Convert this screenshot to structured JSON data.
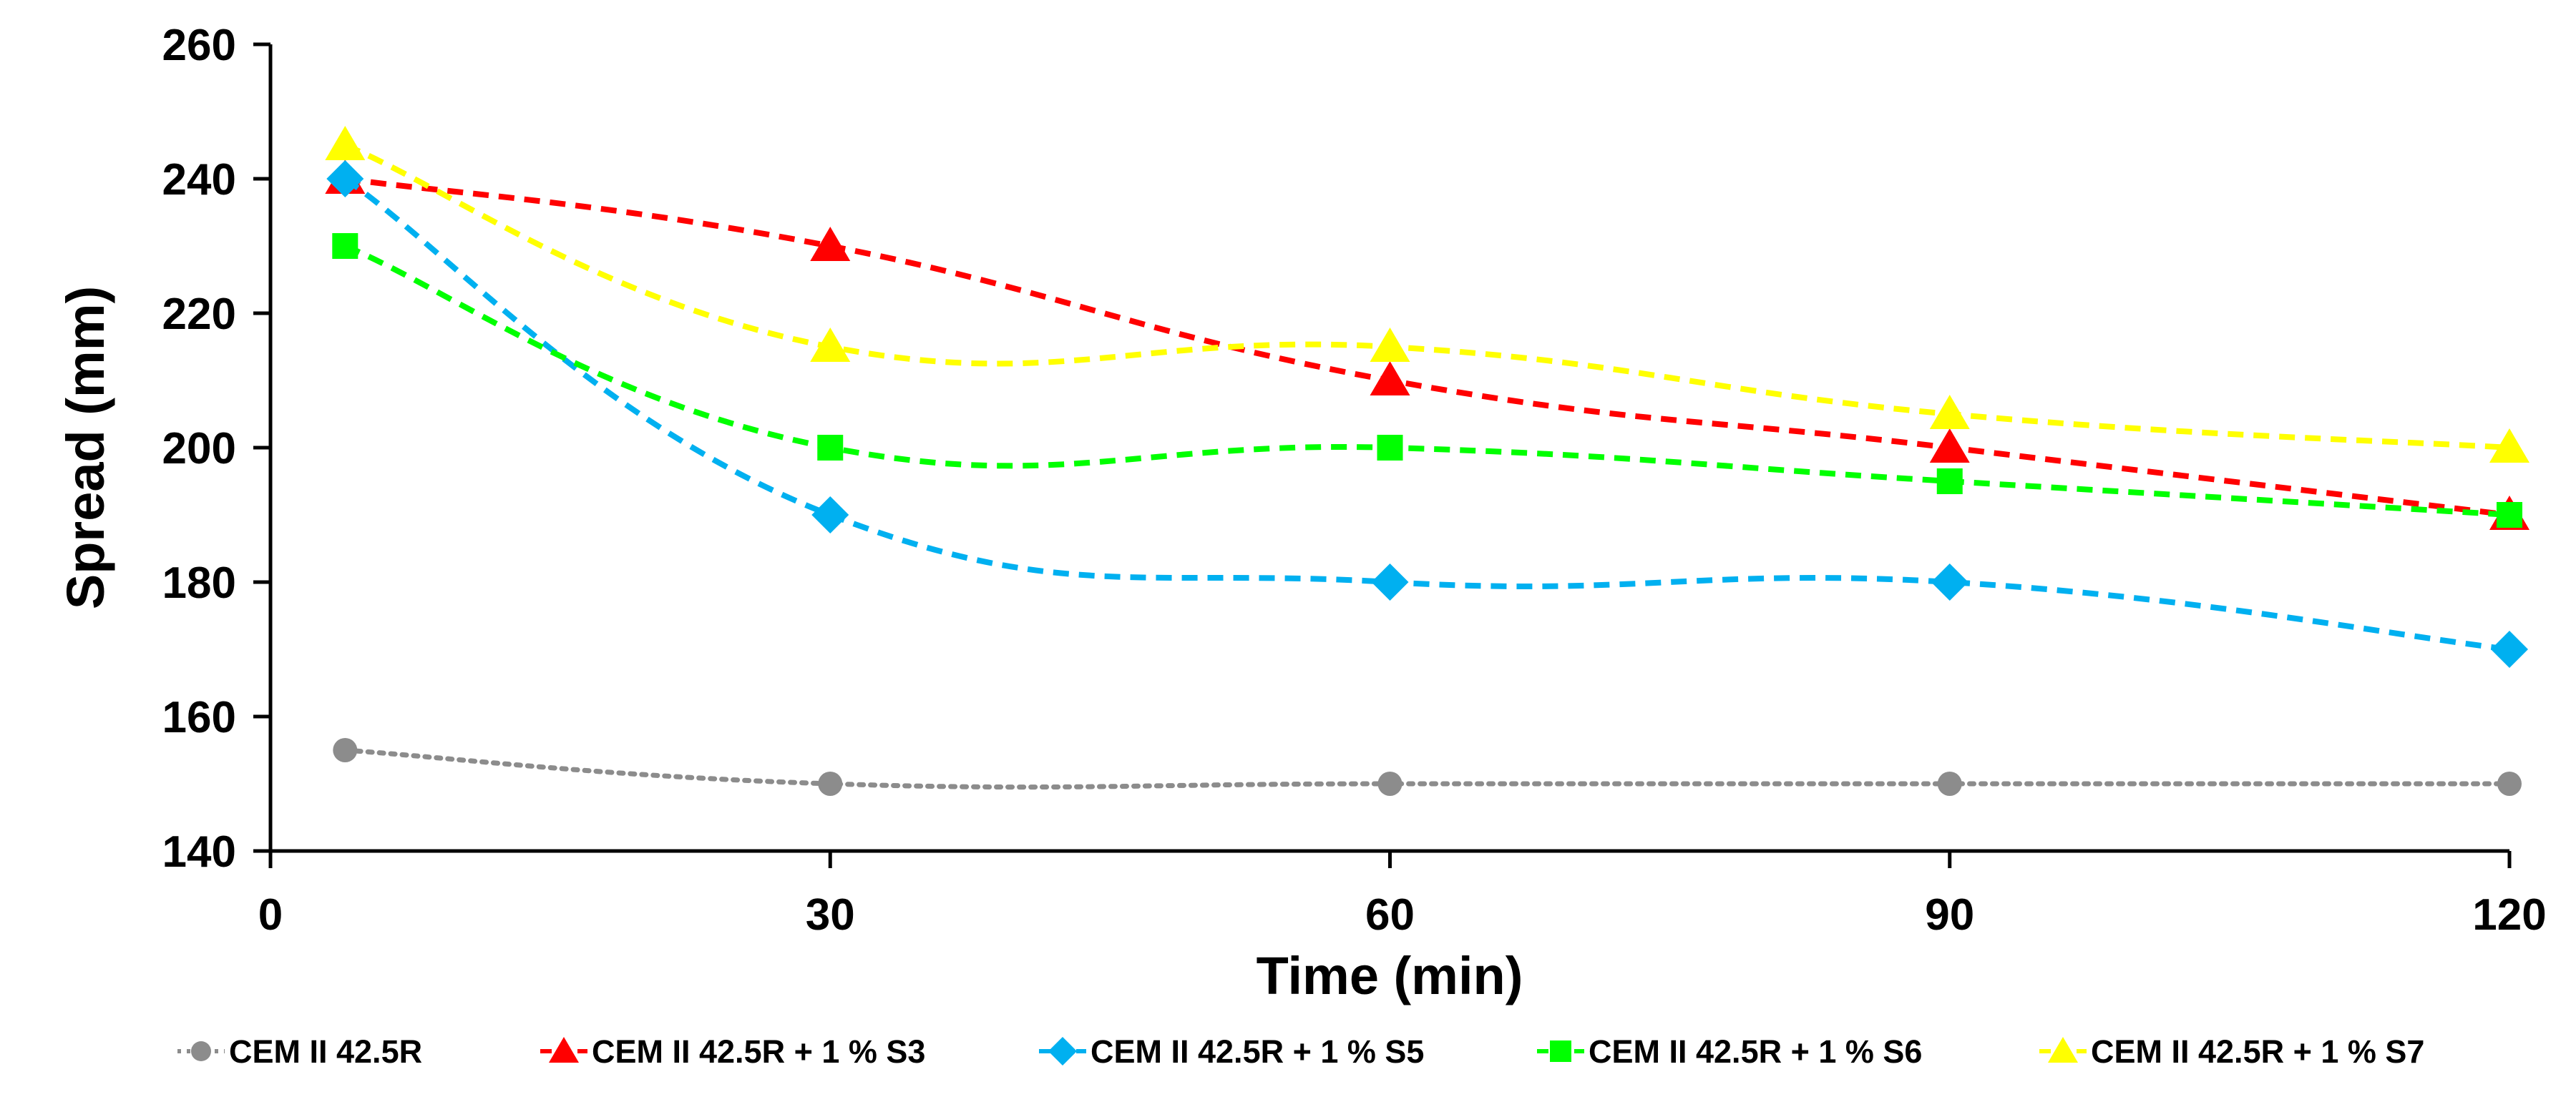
{
  "chart_data": {
    "type": "line",
    "xlabel": "Time (min)",
    "ylabel": "Spread (mm)",
    "xlim": [
      0,
      120
    ],
    "ylim": [
      140,
      260
    ],
    "x_ticks": [
      0,
      30,
      60,
      90,
      120
    ],
    "y_ticks": [
      140,
      160,
      180,
      200,
      220,
      240,
      260
    ],
    "grid": false,
    "legend_position": "bottom",
    "series": [
      {
        "name": "CEM II 42.5R",
        "color": "#8c8c8c",
        "marker": "circle",
        "line_style": "dotted",
        "x": [
          4,
          30,
          60,
          90,
          120
        ],
        "y": [
          155,
          150,
          150,
          150,
          150
        ]
      },
      {
        "name": "CEM II 42.5R + 1 % S3",
        "color": "#ff0000",
        "marker": "triangle",
        "line_style": "dashed",
        "x": [
          4,
          30,
          60,
          90,
          120
        ],
        "y": [
          240,
          230,
          210,
          200,
          190
        ]
      },
      {
        "name": "CEM II 42.5R + 1 % S5",
        "color": "#00b0f0",
        "marker": "diamond",
        "line_style": "dashed",
        "x": [
          4,
          30,
          60,
          90,
          120
        ],
        "y": [
          240,
          190,
          180,
          180,
          170
        ]
      },
      {
        "name": "CEM II 42.5R + 1 % S6",
        "color": "#00ff00",
        "marker": "square",
        "line_style": "dashed",
        "x": [
          4,
          30,
          60,
          90,
          120
        ],
        "y": [
          230,
          200,
          200,
          195,
          190
        ]
      },
      {
        "name": "CEM II 42.5R + 1 % S7",
        "color": "#ffff00",
        "marker": "triangle",
        "line_style": "dashed",
        "x": [
          4,
          30,
          60,
          90,
          120
        ],
        "y": [
          245,
          215,
          215,
          205,
          200
        ]
      }
    ]
  }
}
